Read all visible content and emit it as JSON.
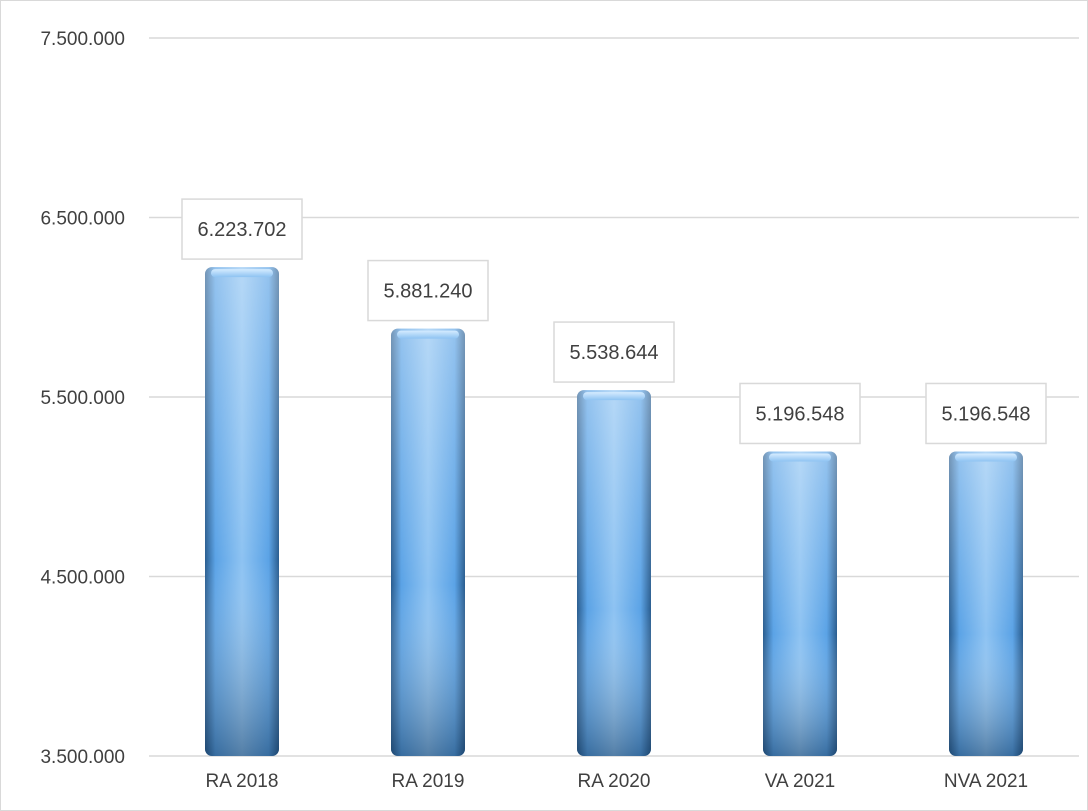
{
  "chart_data": {
    "type": "bar",
    "categories": [
      "RA 2018",
      "RA 2019",
      "RA 2020",
      "VA 2021",
      "NVA 2021"
    ],
    "values": [
      6223702,
      5881240,
      5538644,
      5196548,
      5196548
    ],
    "data_labels": [
      "6.223.702",
      "5.881.240",
      "5.538.644",
      "5.196.548",
      "5.196.548"
    ],
    "yticks": [
      3500000,
      4500000,
      5500000,
      6500000,
      7500000
    ],
    "ytick_labels": [
      "3.500.000",
      "4.500.000",
      "5.500.000",
      "6.500.000",
      "7.500.000"
    ],
    "ylim": [
      3500000,
      7500000
    ],
    "title": "",
    "xlabel": "",
    "ylabel": "",
    "grid": true,
    "legend": "none",
    "colors": {
      "bar_light": "#8ec3f2",
      "bar_mid": "#5ba3e6",
      "bar_dark": "#2a5d8f",
      "gridline": "#d9d9d9",
      "label_border": "#d9d9d9",
      "text": "#404040"
    }
  }
}
